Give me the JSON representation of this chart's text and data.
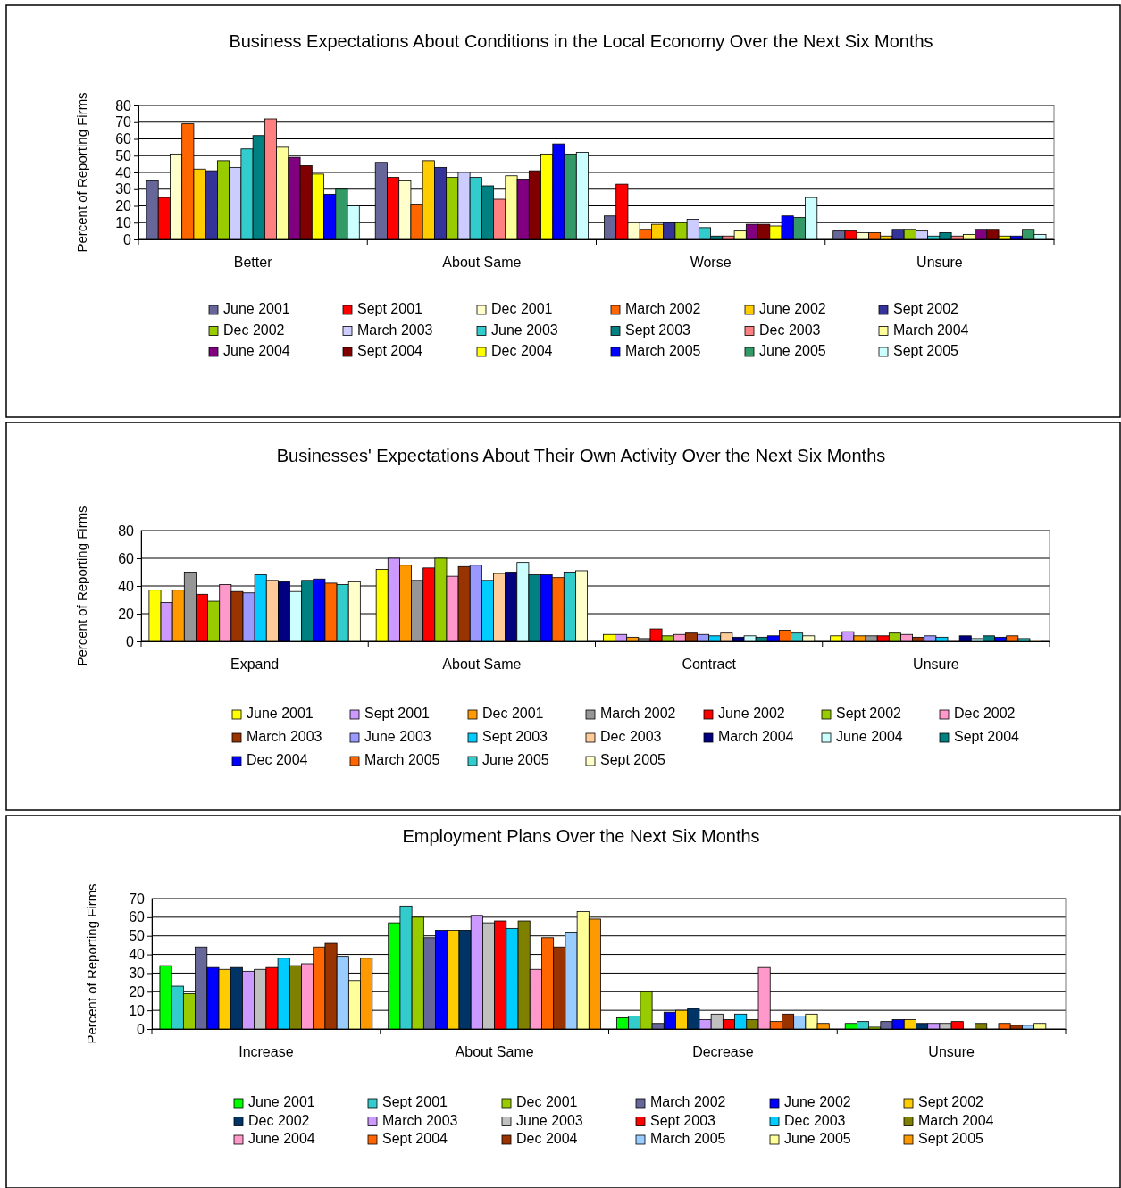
{
  "chart_data": [
    {
      "type": "bar",
      "title": "Business Expectations About Conditions in the Local Economy Over the Next Six Months",
      "ylabel": "Percent of Reporting Firms",
      "categories": [
        "Better",
        "About Same",
        "Worse",
        "Unsure"
      ],
      "ylim": [
        0,
        80
      ],
      "yticks": [
        0,
        10,
        20,
        30,
        40,
        50,
        60,
        70,
        80
      ],
      "grid": "y",
      "legend": "bottom",
      "series": [
        {
          "name": "June 2001",
          "color": "#666699",
          "values": [
            35,
            46,
            14,
            5
          ]
        },
        {
          "name": "Sept 2001",
          "color": "#ff0000",
          "values": [
            25,
            37,
            33,
            5
          ]
        },
        {
          "name": "Dec 2001",
          "color": "#ffffcc",
          "values": [
            51,
            35,
            10,
            4
          ]
        },
        {
          "name": "March 2002",
          "color": "#ff6600",
          "values": [
            69,
            21,
            6,
            4
          ]
        },
        {
          "name": "June 2002",
          "color": "#ffcc00",
          "values": [
            42,
            47,
            9,
            2
          ]
        },
        {
          "name": "Sept 2002",
          "color": "#333399",
          "values": [
            41,
            43,
            10,
            6
          ]
        },
        {
          "name": "Dec 2002",
          "color": "#99cc00",
          "values": [
            47,
            37,
            10,
            6
          ]
        },
        {
          "name": "March 2003",
          "color": "#ccccff",
          "values": [
            43,
            40,
            12,
            5
          ]
        },
        {
          "name": "June 2003",
          "color": "#33cccc",
          "values": [
            54,
            37,
            7,
            2
          ]
        },
        {
          "name": "Sept 2003",
          "color": "#008080",
          "values": [
            62,
            32,
            2,
            4
          ]
        },
        {
          "name": "Dec 2003",
          "color": "#ff8080",
          "values": [
            72,
            24,
            2,
            2
          ]
        },
        {
          "name": "March 2004",
          "color": "#ffff99",
          "values": [
            55,
            38,
            5,
            3
          ]
        },
        {
          "name": "June 2004",
          "color": "#800080",
          "values": [
            49,
            36,
            9,
            6
          ]
        },
        {
          "name": "Sept 2004",
          "color": "#800000",
          "values": [
            44,
            41,
            9,
            6
          ]
        },
        {
          "name": "Dec 2004",
          "color": "#ffff00",
          "values": [
            39,
            51,
            8,
            2
          ]
        },
        {
          "name": "March 2005",
          "color": "#0000ff",
          "values": [
            27,
            57,
            14,
            2
          ]
        },
        {
          "name": "June 2005",
          "color": "#339966",
          "values": [
            30,
            51,
            13,
            6
          ]
        },
        {
          "name": "Sept 2005",
          "color": "#ccffff",
          "values": [
            20,
            52,
            25,
            3
          ]
        }
      ]
    },
    {
      "type": "bar",
      "title": "Businesses' Expectations About Their Own Activity Over the Next Six Months",
      "ylabel": "Percent of Reporting Firms",
      "categories": [
        "Expand",
        "About Same",
        "Contract",
        "Unsure"
      ],
      "ylim": [
        0,
        80
      ],
      "yticks": [
        0,
        20,
        40,
        60,
        80
      ],
      "grid": "y",
      "legend": "bottom",
      "series": [
        {
          "name": "June 2001",
          "color": "#ffff00",
          "values": [
            37,
            52,
            5,
            4
          ]
        },
        {
          "name": "Sept 2001",
          "color": "#cc99ff",
          "values": [
            28,
            60,
            5,
            7
          ]
        },
        {
          "name": "Dec 2001",
          "color": "#ff9900",
          "values": [
            37,
            55,
            3,
            4
          ]
        },
        {
          "name": "March 2002",
          "color": "#969696",
          "values": [
            50,
            44,
            2,
            4
          ]
        },
        {
          "name": "June 2002",
          "color": "#ff0000",
          "values": [
            34,
            53,
            9,
            4
          ]
        },
        {
          "name": "Sept 2002",
          "color": "#99cc00",
          "values": [
            29,
            60,
            4,
            6
          ]
        },
        {
          "name": "Dec 2002",
          "color": "#ff99cc",
          "values": [
            41,
            47,
            5,
            5
          ]
        },
        {
          "name": "March 2003",
          "color": "#993300",
          "values": [
            36,
            54,
            6,
            3
          ]
        },
        {
          "name": "June 2003",
          "color": "#9999ff",
          "values": [
            35,
            55,
            5,
            4
          ]
        },
        {
          "name": "Sept 2003",
          "color": "#00ccff",
          "values": [
            48,
            44,
            4,
            3
          ]
        },
        {
          "name": "Dec 2003",
          "color": "#ffcc99",
          "values": [
            44,
            49,
            6,
            null
          ]
        },
        {
          "name": "March 2004",
          "color": "#000080",
          "values": [
            43,
            50,
            3,
            4
          ]
        },
        {
          "name": "June 2004",
          "color": "#ccffff",
          "values": [
            36,
            57,
            4,
            2
          ]
        },
        {
          "name": "Sept 2004",
          "color": "#008080",
          "values": [
            44,
            48,
            3,
            4
          ]
        },
        {
          "name": "Dec 2004",
          "color": "#0000ff",
          "values": [
            45,
            48,
            4,
            3
          ]
        },
        {
          "name": "March 2005",
          "color": "#ff6600",
          "values": [
            42,
            46,
            8,
            4
          ]
        },
        {
          "name": "June 2005",
          "color": "#33cccc",
          "values": [
            41,
            50,
            6,
            2
          ]
        },
        {
          "name": "Sept 2005",
          "color": "#ffffcc",
          "values": [
            43,
            51,
            4,
            1
          ]
        }
      ]
    },
    {
      "type": "bar",
      "title": "Employment Plans Over the Next Six Months",
      "ylabel": "Percent of Reporting Firms",
      "categories": [
        "Increase",
        "About Same",
        "Decrease",
        "Unsure"
      ],
      "ylim": [
        0,
        70
      ],
      "yticks": [
        0,
        10,
        20,
        30,
        40,
        50,
        60,
        70
      ],
      "grid": "y",
      "legend": "bottom",
      "series": [
        {
          "name": "June 2001",
          "color": "#00ff00",
          "values": [
            34,
            57,
            6,
            3
          ]
        },
        {
          "name": "Sept 2001",
          "color": "#33cccc",
          "values": [
            23,
            66,
            7,
            4
          ]
        },
        {
          "name": "Dec 2001",
          "color": "#99cc00",
          "values": [
            19,
            60,
            20,
            1
          ]
        },
        {
          "name": "March 2002",
          "color": "#666699",
          "values": [
            44,
            49,
            3,
            4
          ]
        },
        {
          "name": "June 2002",
          "color": "#0000ff",
          "values": [
            33,
            53,
            9,
            5
          ]
        },
        {
          "name": "Sept 2002",
          "color": "#ffcc00",
          "values": [
            32,
            53,
            10,
            5
          ]
        },
        {
          "name": "Dec 2002",
          "color": "#003366",
          "values": [
            33,
            53,
            11,
            3
          ]
        },
        {
          "name": "March 2003",
          "color": "#cc99ff",
          "values": [
            31,
            61,
            5,
            3
          ]
        },
        {
          "name": "June 2003",
          "color": "#c0c0c0",
          "values": [
            32,
            57,
            8,
            3
          ]
        },
        {
          "name": "Sept 2003",
          "color": "#ff0000",
          "values": [
            33,
            58,
            5,
            4
          ]
        },
        {
          "name": "Dec 2003",
          "color": "#00ccff",
          "values": [
            38,
            54,
            8,
            null
          ]
        },
        {
          "name": "March 2004",
          "color": "#808000",
          "values": [
            34,
            58,
            5,
            3
          ]
        },
        {
          "name": "June 2004",
          "color": "#ff99cc",
          "values": [
            35,
            32,
            33,
            null
          ]
        },
        {
          "name": "Sept 2004",
          "color": "#ff6600",
          "values": [
            44,
            49,
            4,
            3
          ]
        },
        {
          "name": "Dec 2004",
          "color": "#993300",
          "values": [
            46,
            44,
            8,
            2
          ]
        },
        {
          "name": "March 2005",
          "color": "#99ccff",
          "values": [
            39,
            52,
            7,
            2
          ]
        },
        {
          "name": "June 2005",
          "color": "#ffff99",
          "values": [
            26,
            63,
            8,
            3
          ]
        },
        {
          "name": "Sept 2005",
          "color": "#ff9900",
          "values": [
            38,
            59,
            3,
            null
          ]
        }
      ]
    }
  ]
}
